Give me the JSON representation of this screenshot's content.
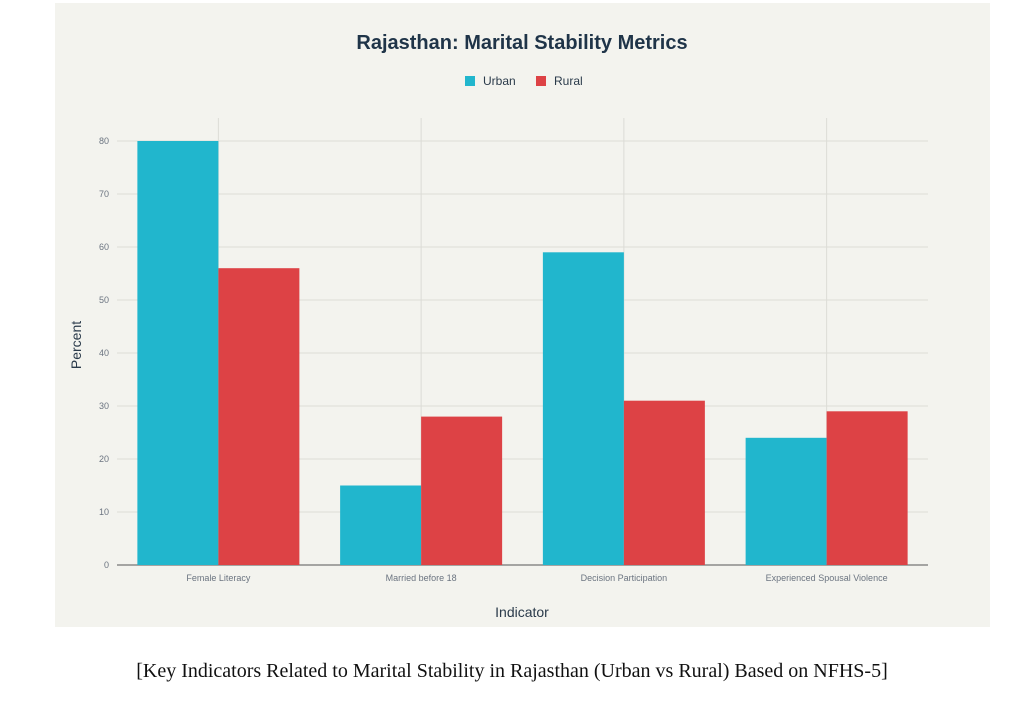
{
  "chart_data": {
    "type": "bar",
    "title": "Rajasthan: Marital Stability Metrics",
    "xlabel": "Indicator",
    "ylabel": "Percent",
    "ylim": [
      0,
      80
    ],
    "yticks": [
      0,
      10,
      20,
      30,
      40,
      50,
      60,
      70,
      80
    ],
    "categories": [
      "Female Literacy",
      "Married before 18",
      "Decision Participation",
      "Experienced Spousal Violence"
    ],
    "series": [
      {
        "name": "Urban",
        "color": "#21b6cd",
        "values": [
          80,
          15,
          59,
          24
        ]
      },
      {
        "name": "Rural",
        "color": "#dd4245",
        "values": [
          56,
          28,
          31,
          29
        ]
      }
    ],
    "legend": "top-center",
    "grid": true
  },
  "caption": "[Key Indicators Related to Marital Stability in Rajasthan (Urban vs Rural) Based on NFHS-5]"
}
